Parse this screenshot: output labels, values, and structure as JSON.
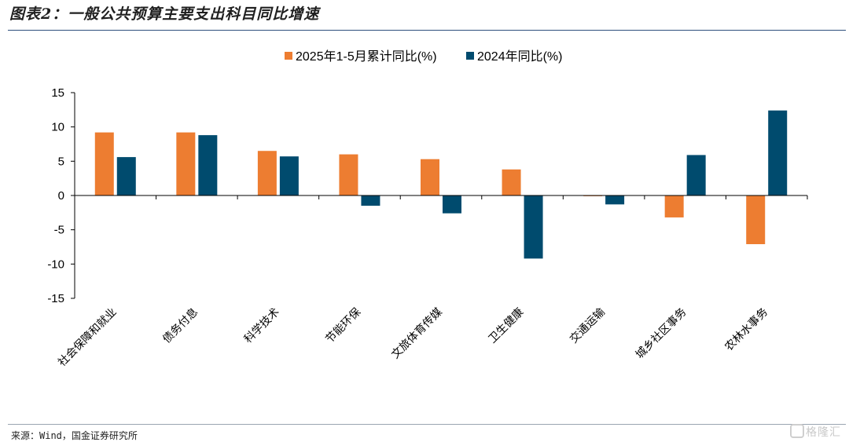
{
  "header": {
    "title": "图表2：一般公共预算主要支出科目同比增速"
  },
  "footer": {
    "source": "来源：Wind，国金证券研究所",
    "watermark": "格隆汇"
  },
  "colors": {
    "series1": "#ed7d31",
    "series2": "#004b6e",
    "title_rule": "#2d4f7c"
  },
  "chart_data": {
    "type": "bar",
    "categories": [
      "社会保障和就业",
      "债务付息",
      "科学技术",
      "节能环保",
      "文旅体育传媒",
      "卫生健康",
      "交通运输",
      "城乡社区事务",
      "农林水事务"
    ],
    "series": [
      {
        "name": "2025年1-5月累计同比(%)",
        "values": [
          9.2,
          9.2,
          6.5,
          6.0,
          5.3,
          3.8,
          -0.1,
          -3.2,
          -7.1
        ]
      },
      {
        "name": "2024年同比(%)",
        "values": [
          5.6,
          8.8,
          5.7,
          -1.5,
          -2.6,
          -9.2,
          -1.3,
          5.9,
          12.4
        ]
      }
    ],
    "ylim": [
      -15,
      15
    ],
    "yticks": [
      15,
      10,
      5,
      0,
      -5,
      -10,
      -15
    ],
    "legend_position": "top-center",
    "grid": false,
    "title": "",
    "xlabel": "",
    "ylabel": ""
  }
}
